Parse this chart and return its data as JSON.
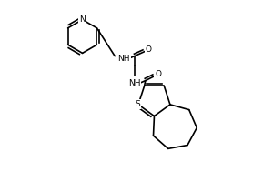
{
  "bg_color": "#ffffff",
  "line_color": "#000000",
  "line_width": 1.2,
  "font_size": 6.5,
  "figsize": [
    3.0,
    2.0
  ],
  "dpi": 100,
  "xlim": [
    40,
    290
  ],
  "ylim": [
    10,
    195
  ]
}
